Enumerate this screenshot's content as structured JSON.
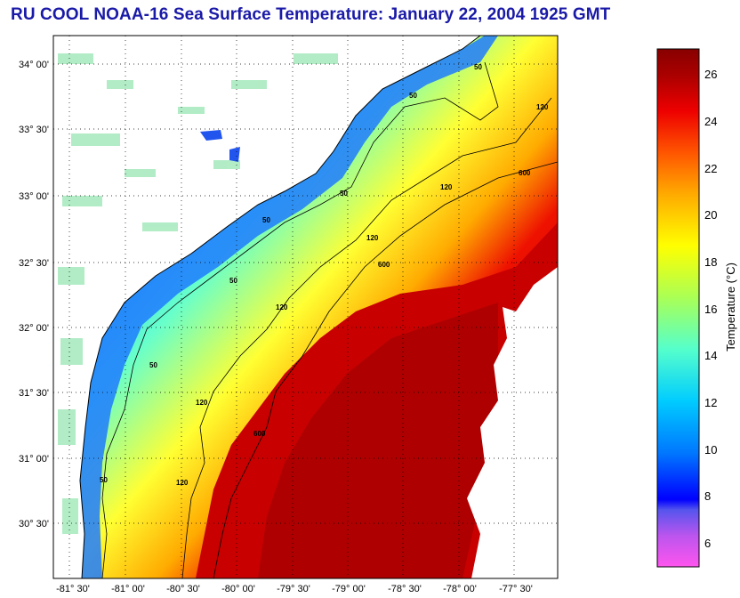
{
  "title": "RU COOL  NOAA-16  Sea Surface Temperature:  January 22, 2004 1925 GMT",
  "lat_labels": [
    "34° 00'",
    "33° 30'",
    "33° 00'",
    "32° 30'",
    "32° 00'",
    "31° 30'",
    "31° 00'",
    "30° 30'"
  ],
  "lon_labels": [
    "-81° 30'",
    "-81° 00'",
    "-80° 30'",
    "-80° 00'",
    "-79° 30'",
    "-79° 00'",
    "-78° 30'",
    "-78° 00'",
    "-77° 30'"
  ],
  "contour_labels": [
    "50",
    "50",
    "50",
    "50",
    "50",
    "50",
    "50",
    "120",
    "120",
    "120",
    "120",
    "120",
    "120",
    "600",
    "600",
    "600"
  ],
  "colorbar": {
    "label": "Temperature (°C)",
    "ticks": [
      "26",
      "24",
      "22",
      "20",
      "18",
      "16",
      "14",
      "12",
      "10",
      "8",
      "6"
    ],
    "min": 5,
    "max": 27,
    "stops": [
      "#ff55ee",
      "#cc55ee",
      "#7755ee",
      "#0000ff",
      "#0077ff",
      "#00ccff",
      "#66ffcc",
      "#aaff55",
      "#ffff00",
      "#ffaa00",
      "#ff5500",
      "#ee0000",
      "#aa0000",
      "#880000"
    ]
  },
  "colors": {
    "land": "#ffffff",
    "cold_coast": "#1a66ff",
    "gulf_stream": "#cc0000",
    "title": "#1a1aa8"
  }
}
